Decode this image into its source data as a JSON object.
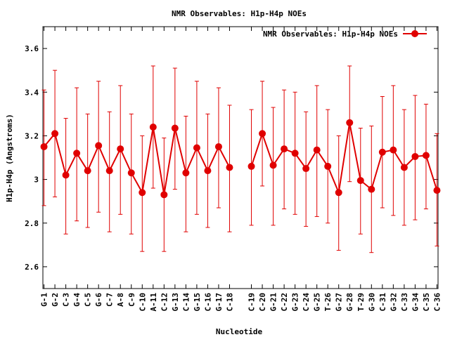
{
  "chart_data": {
    "type": "line",
    "title": "NMR Observables: H1p-H4p NOEs",
    "xlabel": "Nucleotide",
    "ylabel": "H1p-H4p (Angstroms)",
    "ylim": [
      2.5,
      3.7
    ],
    "yticks": [
      "2.6",
      "2.8",
      "3",
      "3.2",
      "3.4",
      "3.6"
    ],
    "legend_position": "top-right",
    "grid": false,
    "series": [
      {
        "name": "NMR Observables: H1p-H4p NOEs",
        "color": "#e00000",
        "x": [
          1,
          2,
          3,
          4,
          5,
          6,
          7,
          8,
          9,
          10,
          11,
          12,
          13,
          14,
          15,
          16,
          17,
          18,
          20,
          21,
          22,
          23,
          24,
          25,
          26,
          27,
          28,
          29,
          30,
          31,
          32,
          33,
          34,
          35,
          36,
          37
        ],
        "labels": [
          "G-1",
          "G-2",
          "C-3",
          "G-4",
          "C-5",
          "G-6",
          "C-7",
          "A-8",
          "C-9",
          "C-10",
          "A-11",
          "C-12",
          "G-13",
          "C-14",
          "G-15",
          "C-16",
          "G-17",
          "C-18",
          "C-19",
          "C-20",
          "G-21",
          "C-22",
          "G-23",
          "C-24",
          "G-25",
          "T-26",
          "G-27",
          "G-28",
          "T-29",
          "G-30",
          "C-31",
          "G-32",
          "C-33",
          "G-34",
          "C-35",
          "C-36"
        ],
        "values": [
          3.15,
          3.21,
          3.02,
          3.12,
          3.04,
          3.155,
          3.04,
          3.14,
          3.03,
          2.94,
          3.24,
          2.93,
          3.235,
          3.03,
          3.145,
          3.04,
          3.15,
          3.055,
          3.06,
          3.21,
          3.065,
          3.14,
          3.12,
          3.05,
          3.135,
          3.06,
          2.94,
          3.26,
          2.995,
          2.955,
          3.125,
          3.135,
          3.055,
          3.105,
          3.11,
          2.95
        ],
        "err_low": [
          2.88,
          2.92,
          2.75,
          2.81,
          2.78,
          2.85,
          2.76,
          2.84,
          2.75,
          2.67,
          2.96,
          2.67,
          2.955,
          2.76,
          2.84,
          2.78,
          2.87,
          2.76,
          2.79,
          2.97,
          2.79,
          2.865,
          2.84,
          2.785,
          2.83,
          2.8,
          2.675,
          2.99,
          2.75,
          2.665,
          2.87,
          2.835,
          2.79,
          2.815,
          2.865,
          2.695
        ],
        "err_high": [
          3.41,
          3.5,
          3.28,
          3.42,
          3.3,
          3.45,
          3.31,
          3.43,
          3.3,
          3.2,
          3.52,
          3.19,
          3.51,
          3.29,
          3.45,
          3.3,
          3.42,
          3.34,
          3.32,
          3.45,
          3.33,
          3.41,
          3.4,
          3.31,
          3.43,
          3.32,
          3.2,
          3.52,
          3.235,
          3.245,
          3.38,
          3.43,
          3.32,
          3.385,
          3.345,
          3.21
        ]
      }
    ]
  }
}
